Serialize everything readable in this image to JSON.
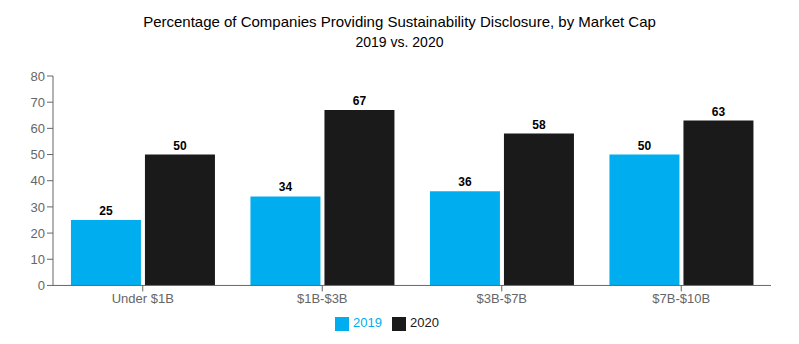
{
  "chart_data": {
    "type": "bar",
    "title": "Percentage of Companies Providing Sustainability Disclosure, by Market Cap",
    "subtitle": "2019 vs. 2020",
    "categories": [
      "Under $1B",
      "$1B-$3B",
      "$3B-$7B",
      "$7B-$10B"
    ],
    "series": [
      {
        "name": "2019",
        "color": "#00AEEF",
        "values": [
          25,
          34,
          36,
          50
        ]
      },
      {
        "name": "2020",
        "color": "#1a1a1a",
        "values": [
          50,
          67,
          58,
          63
        ]
      }
    ],
    "ylim": [
      0,
      80
    ],
    "yticks": [
      0,
      10,
      20,
      30,
      40,
      50,
      60,
      70,
      80
    ],
    "grid": false,
    "legend": "bottom",
    "data_labels": true
  }
}
